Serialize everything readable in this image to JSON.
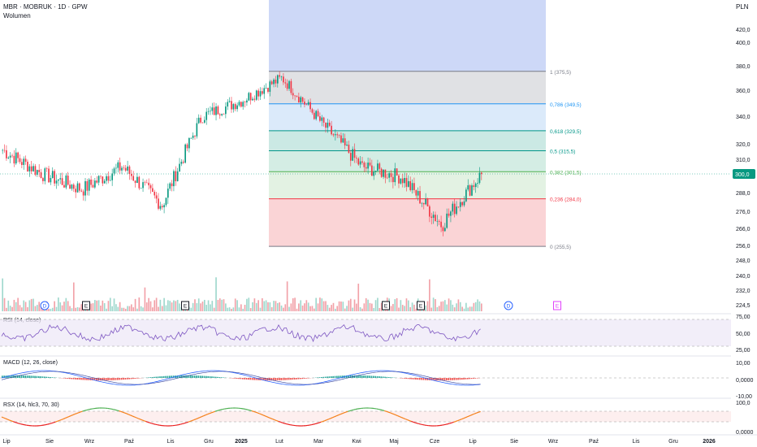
{
  "header": {
    "symbol": "MBR · MOBRUK · 1D · GPW",
    "volume_label": "Wolumen",
    "currency": "PLN"
  },
  "colors": {
    "up": "#089981",
    "down": "#f23645",
    "up_vol": "#f2a1a8",
    "down_vol": "#f2a1a8",
    "rsi_line": "#7e57c2",
    "macd_line": "#2962ff",
    "signal_line": "#ff9800",
    "rsx_line": "#f57f17",
    "rsx_high": "#4caf50",
    "rsx_low": "#e91e1e",
    "last_price_bg": "#089981"
  },
  "price_axis": {
    "ticks": [
      "420,0",
      "400,0",
      "380,0",
      "360,0",
      "340,0",
      "320,0",
      "310,0",
      "300,0",
      "288,0",
      "276,0",
      "266,0",
      "256,0",
      "248,0",
      "240,0",
      "232,0",
      "224,5"
    ],
    "last_price": "300,0"
  },
  "fibonacci": {
    "levels": [
      {
        "label": "1 (375,5)",
        "price": 375.5,
        "color": "#787b86"
      },
      {
        "label": "0,786 (349,5)",
        "price": 349.5,
        "color": "#2196f3"
      },
      {
        "label": "0,618 (329,5)",
        "price": 329.5,
        "color": "#009688"
      },
      {
        "label": "0,5 (315,5)",
        "price": 315.5,
        "color": "#009688"
      },
      {
        "label": "0,382 (301,5)",
        "price": 301.5,
        "color": "#4caf50"
      },
      {
        "label": "0,236 (284,0)",
        "price": 284.0,
        "color": "#f23645"
      },
      {
        "label": "0 (255,5)",
        "price": 255.5,
        "color": "#787b86"
      }
    ]
  },
  "event_markers": [
    {
      "label": "D",
      "type": "dividend"
    },
    {
      "label": "E",
      "type": "earnings"
    },
    {
      "label": "E",
      "type": "earnings"
    },
    {
      "label": "E",
      "type": "earnings"
    },
    {
      "label": "E",
      "type": "earnings"
    },
    {
      "label": "D",
      "type": "dividend"
    },
    {
      "label": "E",
      "type": "earnings"
    }
  ],
  "indicators": {
    "rsi": {
      "label": "RSI (14, close)",
      "ticks": [
        "75,00",
        "50,00",
        "25,00"
      ]
    },
    "macd": {
      "label": "MACD (12, 26, close)",
      "ticks": [
        "10,00",
        "0,0000",
        "-10,00"
      ]
    },
    "rsx": {
      "label": "RSX (14, hlc3, 70, 30)",
      "ticks": [
        "100,0",
        "0,0000"
      ]
    }
  },
  "time_axis": {
    "labels": [
      "Lip",
      "Sie",
      "Wrz",
      "Paź",
      "Lis",
      "Gru",
      "2025",
      "Lut",
      "Mar",
      "Kwi",
      "Maj",
      "Cze",
      "Lip",
      "Sie",
      "Wrz",
      "Paź",
      "Lis",
      "Gru",
      "2026"
    ]
  },
  "chart_data": {
    "type": "candlestick",
    "title": "MBR · MOBRUK · 1D · GPW",
    "ylabel": "PLN",
    "ylim": [
      220,
      430
    ],
    "x": [
      "2024-07",
      "2024-08",
      "2024-09",
      "2024-10",
      "2024-11",
      "2024-12",
      "2025-01",
      "2025-02",
      "2025-03",
      "2025-04",
      "2025-05",
      "2025-06",
      "2025-07"
    ],
    "series": [
      {
        "name": "close",
        "values": [
          316,
          300,
          290,
          305,
          280,
          340,
          352,
          370,
          335,
          305,
          298,
          268,
          300
        ]
      }
    ]
  }
}
